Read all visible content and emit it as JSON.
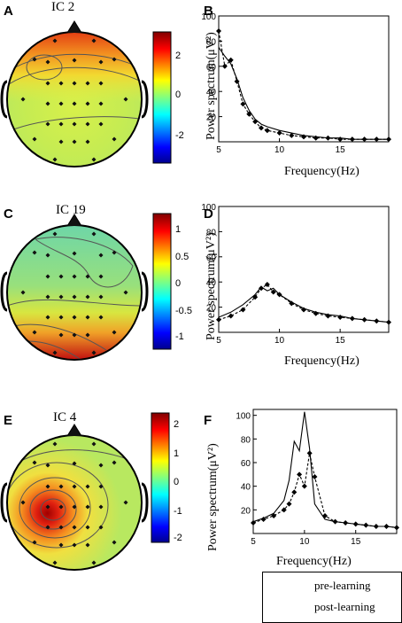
{
  "panels": [
    {
      "letter": "A",
      "title": "IC 2",
      "cbar_ticks": [
        "2",
        "0",
        "-2"
      ]
    },
    {
      "letter": "C",
      "title": "IC 19",
      "cbar_ticks": [
        "1",
        "0.5",
        "0",
        "-0.5",
        "-1"
      ]
    },
    {
      "letter": "E",
      "title": "IC 4",
      "cbar_ticks": [
        "2",
        "1",
        "0",
        "-1",
        "-2"
      ]
    }
  ],
  "spectra": [
    {
      "letter": "B",
      "ylabel": "Power spectrum(μV²)",
      "xlabel": "Frequency(Hz)"
    },
    {
      "letter": "D",
      "ylabel": "Power spectrum(μV²)",
      "xlabel": "Frequency(Hz)"
    },
    {
      "letter": "F",
      "ylabel": "Power spectrum(μV²)",
      "xlabel": "Frequency(Hz)"
    }
  ],
  "legend": {
    "pre": "pre-learning",
    "post": "post-learning"
  },
  "chart_data": [
    {
      "type": "line",
      "xlim": [
        5,
        19
      ],
      "ylim": [
        0,
        100
      ],
      "xticks": [
        5,
        10,
        15
      ],
      "yticks": [
        20,
        40,
        60,
        80,
        100
      ],
      "series": [
        {
          "name": "pre-learning",
          "x": [
            5,
            5.5,
            6,
            6.5,
            7,
            7.5,
            8,
            8.5,
            9,
            10,
            11,
            12,
            13,
            14,
            15,
            16,
            17,
            18,
            19
          ],
          "values": [
            75,
            68,
            62,
            50,
            35,
            25,
            18,
            14,
            12,
            9,
            7,
            5,
            4,
            3,
            3,
            2,
            2,
            2,
            2
          ]
        },
        {
          "name": "post-learning",
          "x": [
            5,
            5.5,
            6,
            6.5,
            7,
            7.5,
            8,
            8.5,
            9,
            10,
            11,
            12,
            13,
            14,
            15,
            16,
            17,
            18,
            19
          ],
          "values": [
            88,
            60,
            65,
            48,
            30,
            22,
            16,
            11,
            9,
            7,
            5,
            4,
            3,
            3,
            2,
            2,
            2,
            2,
            2
          ]
        }
      ]
    },
    {
      "type": "line",
      "xlim": [
        5,
        19
      ],
      "ylim": [
        0,
        100
      ],
      "xticks": [
        5,
        10,
        15
      ],
      "yticks": [
        20,
        40,
        60,
        80,
        100
      ],
      "series": [
        {
          "name": "pre-learning",
          "x": [
            5,
            6,
            7,
            8,
            8.5,
            9,
            9.5,
            10,
            11,
            12,
            13,
            14,
            15,
            16,
            17,
            18,
            19
          ],
          "values": [
            12,
            16,
            22,
            30,
            36,
            33,
            35,
            30,
            24,
            19,
            16,
            14,
            13,
            11,
            10,
            9,
            8
          ]
        },
        {
          "name": "post-learning",
          "x": [
            5,
            6,
            7,
            8,
            8.5,
            9,
            9.5,
            10,
            11,
            12,
            13,
            14,
            15,
            16,
            17,
            18,
            19
          ],
          "values": [
            10,
            13,
            18,
            28,
            35,
            38,
            32,
            30,
            23,
            18,
            15,
            13,
            12,
            11,
            10,
            9,
            8
          ]
        }
      ]
    },
    {
      "type": "line",
      "xlim": [
        5,
        19
      ],
      "ylim": [
        0,
        105
      ],
      "xticks": [
        5,
        10,
        15
      ],
      "yticks": [
        20,
        40,
        60,
        80,
        100
      ],
      "series": [
        {
          "name": "pre-learning",
          "x": [
            5,
            6,
            7,
            8,
            8.5,
            9,
            9.5,
            10,
            10.5,
            11,
            12,
            13,
            14,
            15,
            16,
            17,
            18,
            19
          ],
          "values": [
            10,
            13,
            17,
            28,
            45,
            78,
            70,
            103,
            72,
            25,
            12,
            10,
            9,
            8,
            7,
            6,
            6,
            5
          ]
        },
        {
          "name": "post-learning",
          "x": [
            5,
            6,
            7,
            8,
            8.5,
            9,
            9.5,
            10,
            10.5,
            11,
            12,
            13,
            14,
            15,
            16,
            17,
            18,
            19
          ],
          "values": [
            9,
            12,
            15,
            20,
            25,
            35,
            50,
            40,
            68,
            48,
            15,
            10,
            9,
            8,
            7,
            6,
            6,
            5
          ]
        }
      ]
    }
  ]
}
